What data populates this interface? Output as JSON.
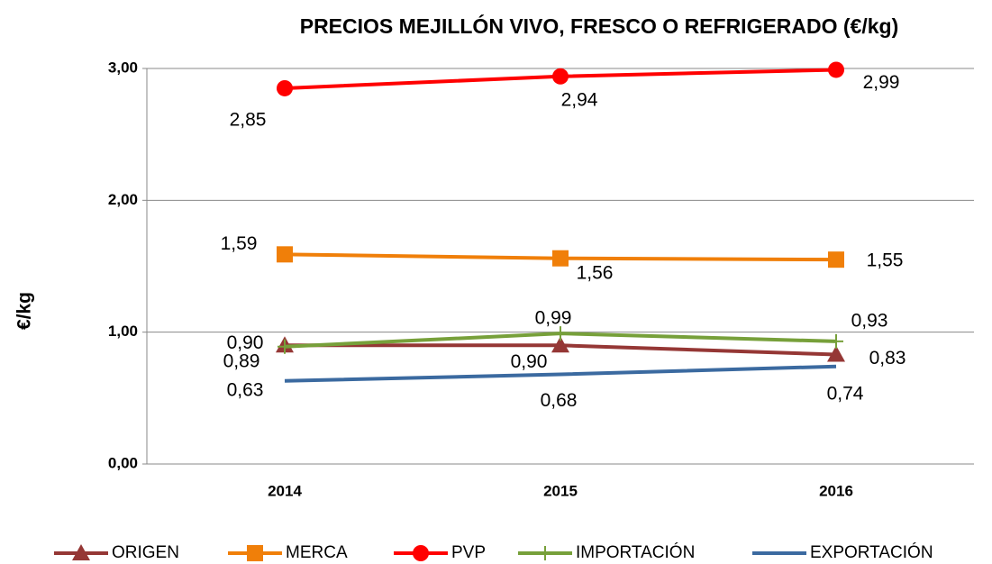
{
  "chart_data": {
    "type": "line",
    "title": "PRECIOS MEJILLÓN VIVO, FRESCO O REFRIGERADO (€/kg)",
    "y_label": "€/kg",
    "categories": [
      "2014",
      "2015",
      "2016"
    ],
    "ylim": [
      0,
      3
    ],
    "yticks": [
      {
        "value": 0,
        "label": "0,00"
      },
      {
        "value": 1,
        "label": "1,00"
      },
      {
        "value": 2,
        "label": "2,00"
      },
      {
        "value": 3,
        "label": "3,00"
      }
    ],
    "grid": true,
    "legend": "bottom",
    "series": [
      {
        "name": "ORIGEN",
        "color": "#953735",
        "marker": "triangle",
        "values": [
          0.9,
          0.9,
          0.83
        ],
        "value_labels": [
          "0,90",
          "0,90",
          "0,83"
        ]
      },
      {
        "name": "MERCA",
        "color": "#f07f09",
        "marker": "square",
        "values": [
          1.59,
          1.56,
          1.55
        ],
        "value_labels": [
          "1,59",
          "1,56",
          "1,55"
        ]
      },
      {
        "name": "PVP",
        "color": "#ff0000",
        "marker": "circle",
        "values": [
          2.85,
          2.94,
          2.99
        ],
        "value_labels": [
          "2,85",
          "2,94",
          "2,99"
        ]
      },
      {
        "name": "IMPORTACIÓN",
        "color": "#77a03a",
        "marker": "plus",
        "values": [
          0.89,
          0.99,
          0.93
        ],
        "value_labels": [
          "0,89",
          "0,99",
          "0,93"
        ]
      },
      {
        "name": "EXPORTACIÓN",
        "color": "#3b6aa0",
        "marker": "none",
        "values": [
          0.63,
          0.68,
          0.74
        ],
        "value_labels": [
          "0,63",
          "0,68",
          "0,74"
        ]
      }
    ]
  }
}
